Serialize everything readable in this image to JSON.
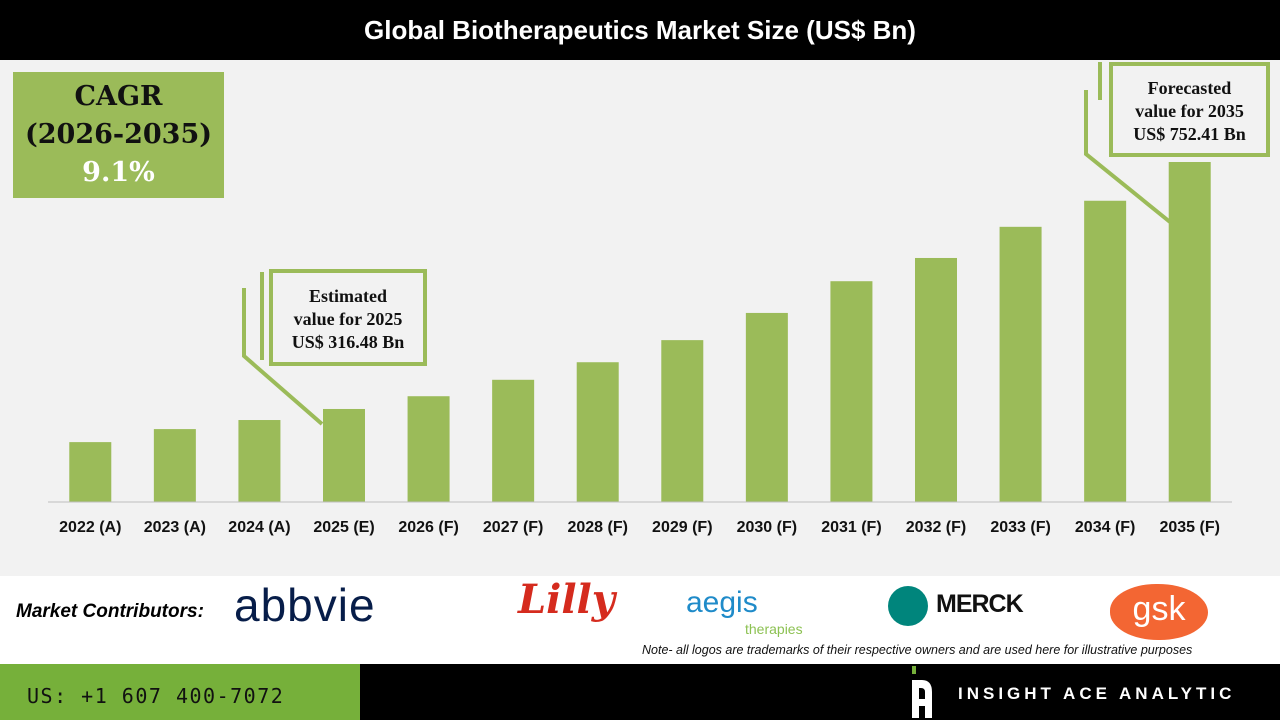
{
  "chart_data": {
    "type": "bar",
    "title": "Global Biotherapeutics Market Size (US$ Bn)",
    "categories": [
      "2022 (A)",
      "2023 (A)",
      "2024 (A)",
      "2025 (E)",
      "2026 (F)",
      "2027 (F)",
      "2028 (F)",
      "2029 (F)",
      "2030 (F)",
      "2031 (F)",
      "2032 (F)",
      "2033 (F)",
      "2034 (F)",
      "2035 (F)"
    ],
    "values": [
      258,
      281,
      297,
      316.48,
      339,
      368,
      399,
      438,
      486,
      542,
      583,
      638,
      684,
      752.41
    ],
    "ylim": [
      150,
      800
    ],
    "bar_color": "#9bbb59",
    "grid": false,
    "annotations": {
      "cagr": {
        "label": "CAGR",
        "period": "(2026-2035)",
        "value": "9.1%"
      },
      "estimated": {
        "line1": "Estimated",
        "line2": "value for 2025",
        "line3": "US$ 316.48 Bn"
      },
      "forecast": {
        "line1": "Forecasted",
        "line2": "value for 2035",
        "line3": "US$ 752.41 Bn"
      }
    }
  },
  "contributors": {
    "label": "Market Contributors:",
    "logos": [
      "abbvie",
      "Lilly",
      "aegis",
      "therapies",
      "MERCK",
      "gsk"
    ]
  },
  "note": "Note- all logos are trademarks of their respective owners and are used here for illustrative purposes",
  "footer": {
    "phone": "US: +1 607 400-7072",
    "brand": "INSIGHT ACE ANALYTIC"
  }
}
